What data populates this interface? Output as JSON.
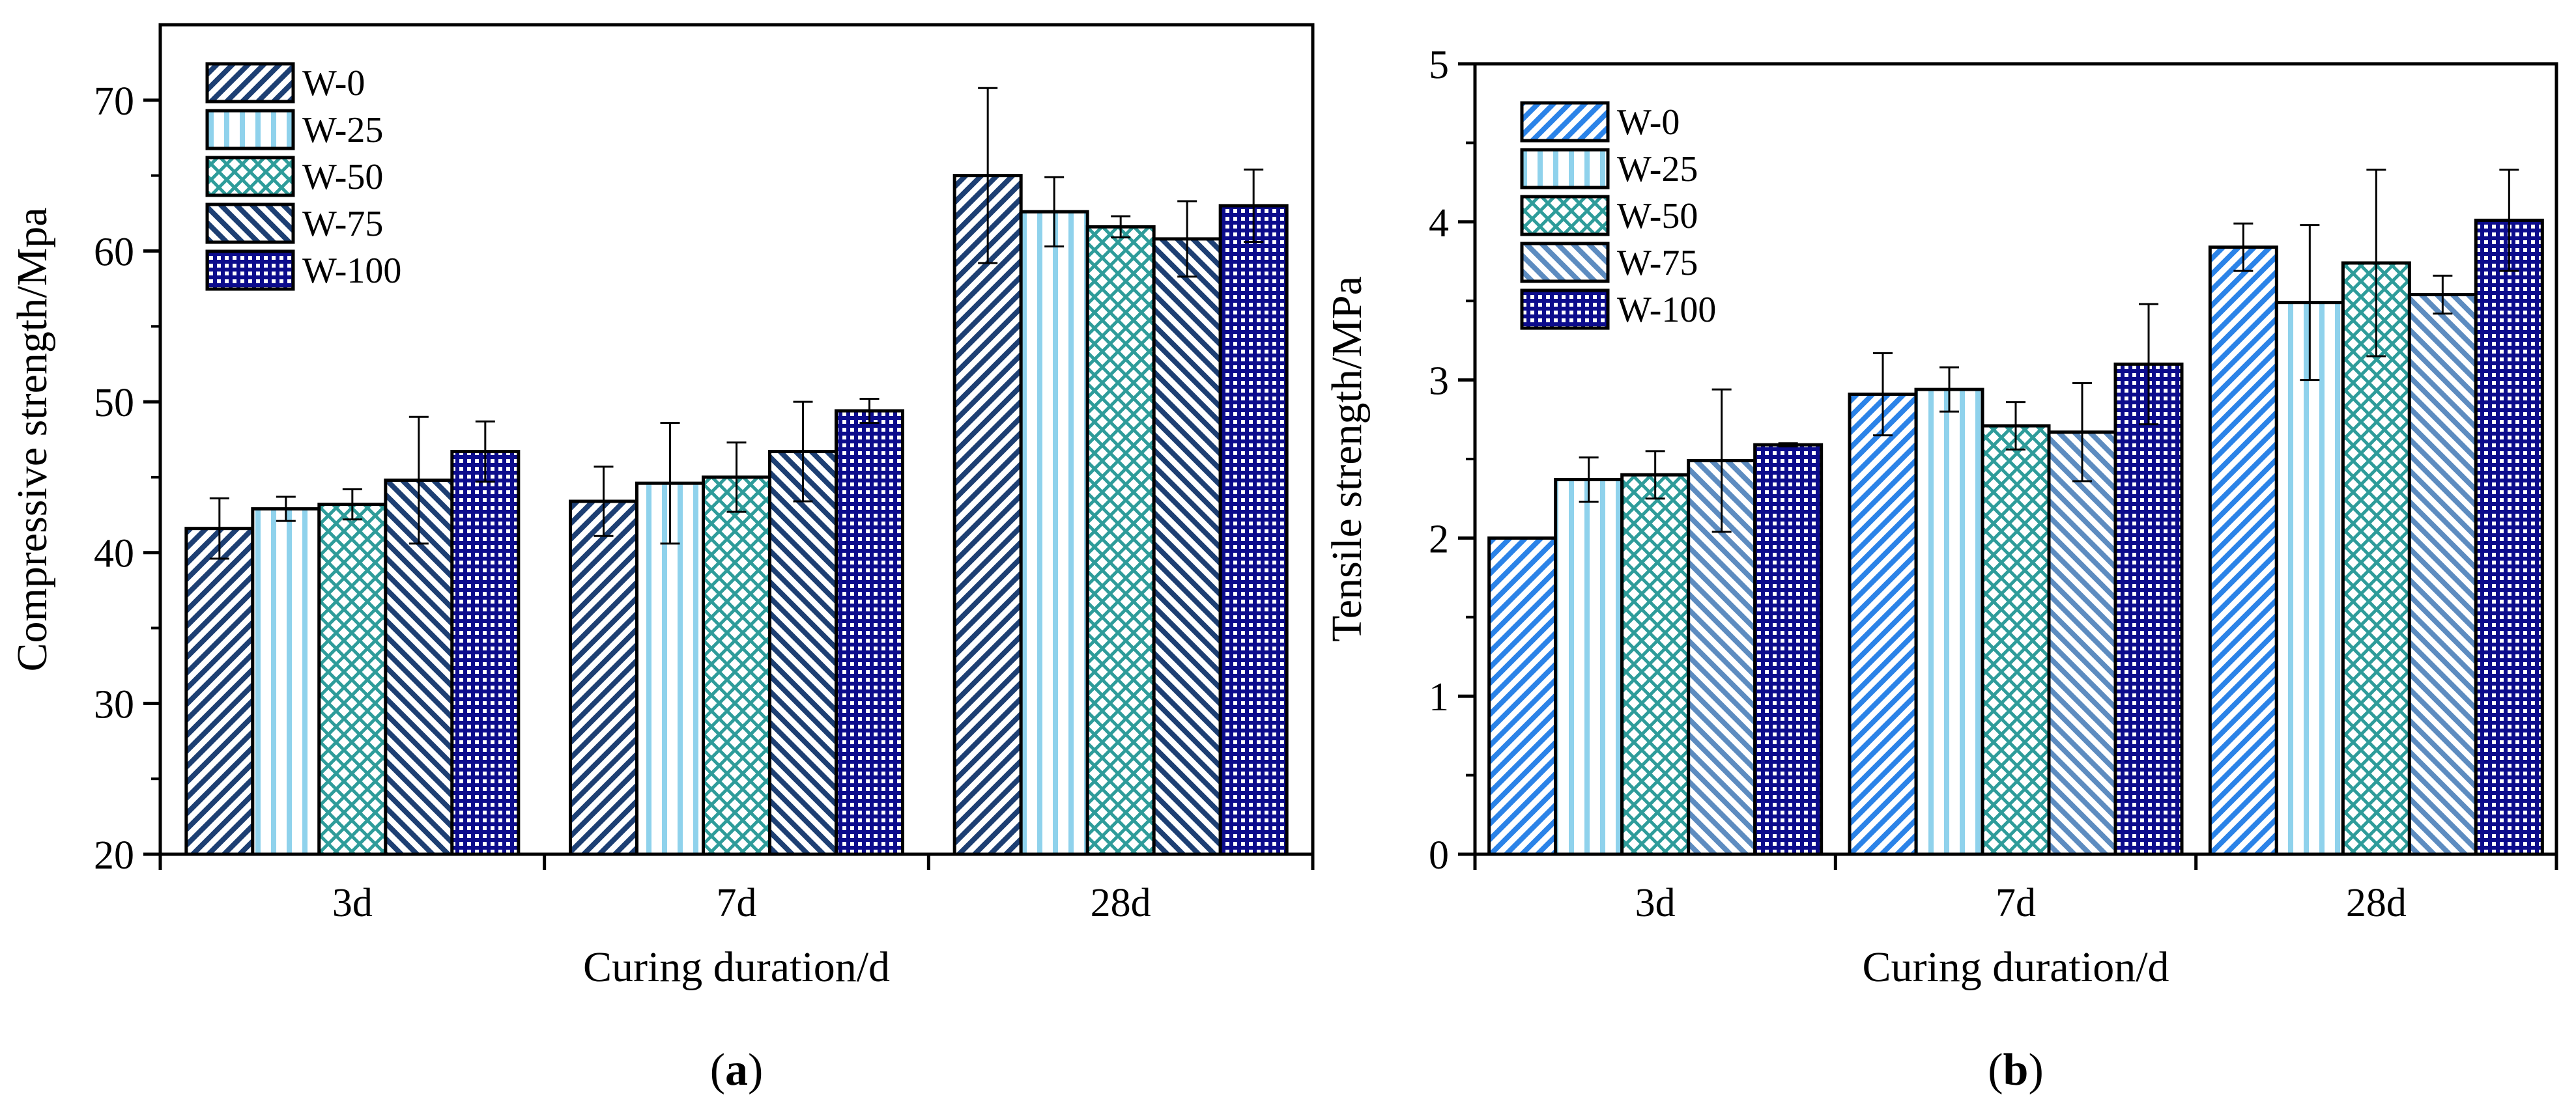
{
  "colors": {
    "dark_blue": "#1d3f73",
    "light_blue": "#8fd2ec",
    "teal": "#2e9c9a",
    "navy": "#0c0c8c",
    "bright_blue": "#2b83e8",
    "steel_blue": "#5d8cc0"
  },
  "chart_data": [
    {
      "type": "bar",
      "panel_label": "a",
      "xlabel": "Curing duration/d",
      "ylabel": "Compressive strength/Mpa",
      "categories": [
        "3d",
        "7d",
        "28d"
      ],
      "ylim": [
        20,
        75
      ],
      "yticks": [
        20,
        30,
        40,
        50,
        60,
        70
      ],
      "legend_position": "top-left",
      "series": [
        {
          "name": "W-0",
          "pattern": "diag-right",
          "color": "#1d3f73",
          "values": [
            41.6,
            43.4,
            65.0
          ],
          "errors": [
            2.0,
            2.3,
            5.8
          ]
        },
        {
          "name": "W-25",
          "pattern": "vertical",
          "color": "#8fd2ec",
          "values": [
            42.9,
            44.6,
            62.6
          ],
          "errors": [
            0.8,
            4.0,
            2.3
          ]
        },
        {
          "name": "W-50",
          "pattern": "crosshatch",
          "color": "#2e9c9a",
          "values": [
            43.2,
            45.0,
            61.6
          ],
          "errors": [
            1.0,
            2.3,
            0.7
          ]
        },
        {
          "name": "W-75",
          "pattern": "diag-left",
          "color": "#1d3f73",
          "values": [
            44.8,
            46.7,
            60.8
          ],
          "errors": [
            4.2,
            3.3,
            2.5
          ]
        },
        {
          "name": "W-100",
          "pattern": "grid",
          "color": "#0c0c8c",
          "values": [
            46.7,
            49.4,
            63.0
          ],
          "errors": [
            2.0,
            0.8,
            2.4
          ]
        }
      ]
    },
    {
      "type": "bar",
      "panel_label": "b",
      "xlabel": "Curing duration/d",
      "ylabel": "Tensile strength/MPa",
      "categories": [
        "3d",
        "7d",
        "28d"
      ],
      "ylim": [
        0,
        5
      ],
      "yticks": [
        0,
        1,
        2,
        3,
        4,
        5
      ],
      "legend_position": "top-left",
      "series": [
        {
          "name": "W-0",
          "pattern": "diag-right",
          "color": "#2b83e8",
          "values": [
            2.0,
            2.91,
            3.84
          ],
          "errors": [
            0.0,
            0.26,
            0.15
          ]
        },
        {
          "name": "W-25",
          "pattern": "vertical",
          "color": "#8fd2ec",
          "values": [
            2.37,
            2.94,
            3.49
          ],
          "errors": [
            0.14,
            0.14,
            0.49
          ]
        },
        {
          "name": "W-50",
          "pattern": "crosshatch",
          "color": "#2e9c9a",
          "values": [
            2.4,
            2.71,
            3.74
          ],
          "errors": [
            0.15,
            0.15,
            0.59
          ]
        },
        {
          "name": "W-75",
          "pattern": "diag-left",
          "color": "#5d8cc0",
          "values": [
            2.49,
            2.67,
            3.54
          ],
          "errors": [
            0.45,
            0.31,
            0.12
          ]
        },
        {
          "name": "W-100",
          "pattern": "grid",
          "color": "#0c0c8c",
          "values": [
            2.59,
            3.1,
            4.01
          ],
          "errors": [
            0.01,
            0.38,
            0.32
          ]
        }
      ]
    }
  ]
}
